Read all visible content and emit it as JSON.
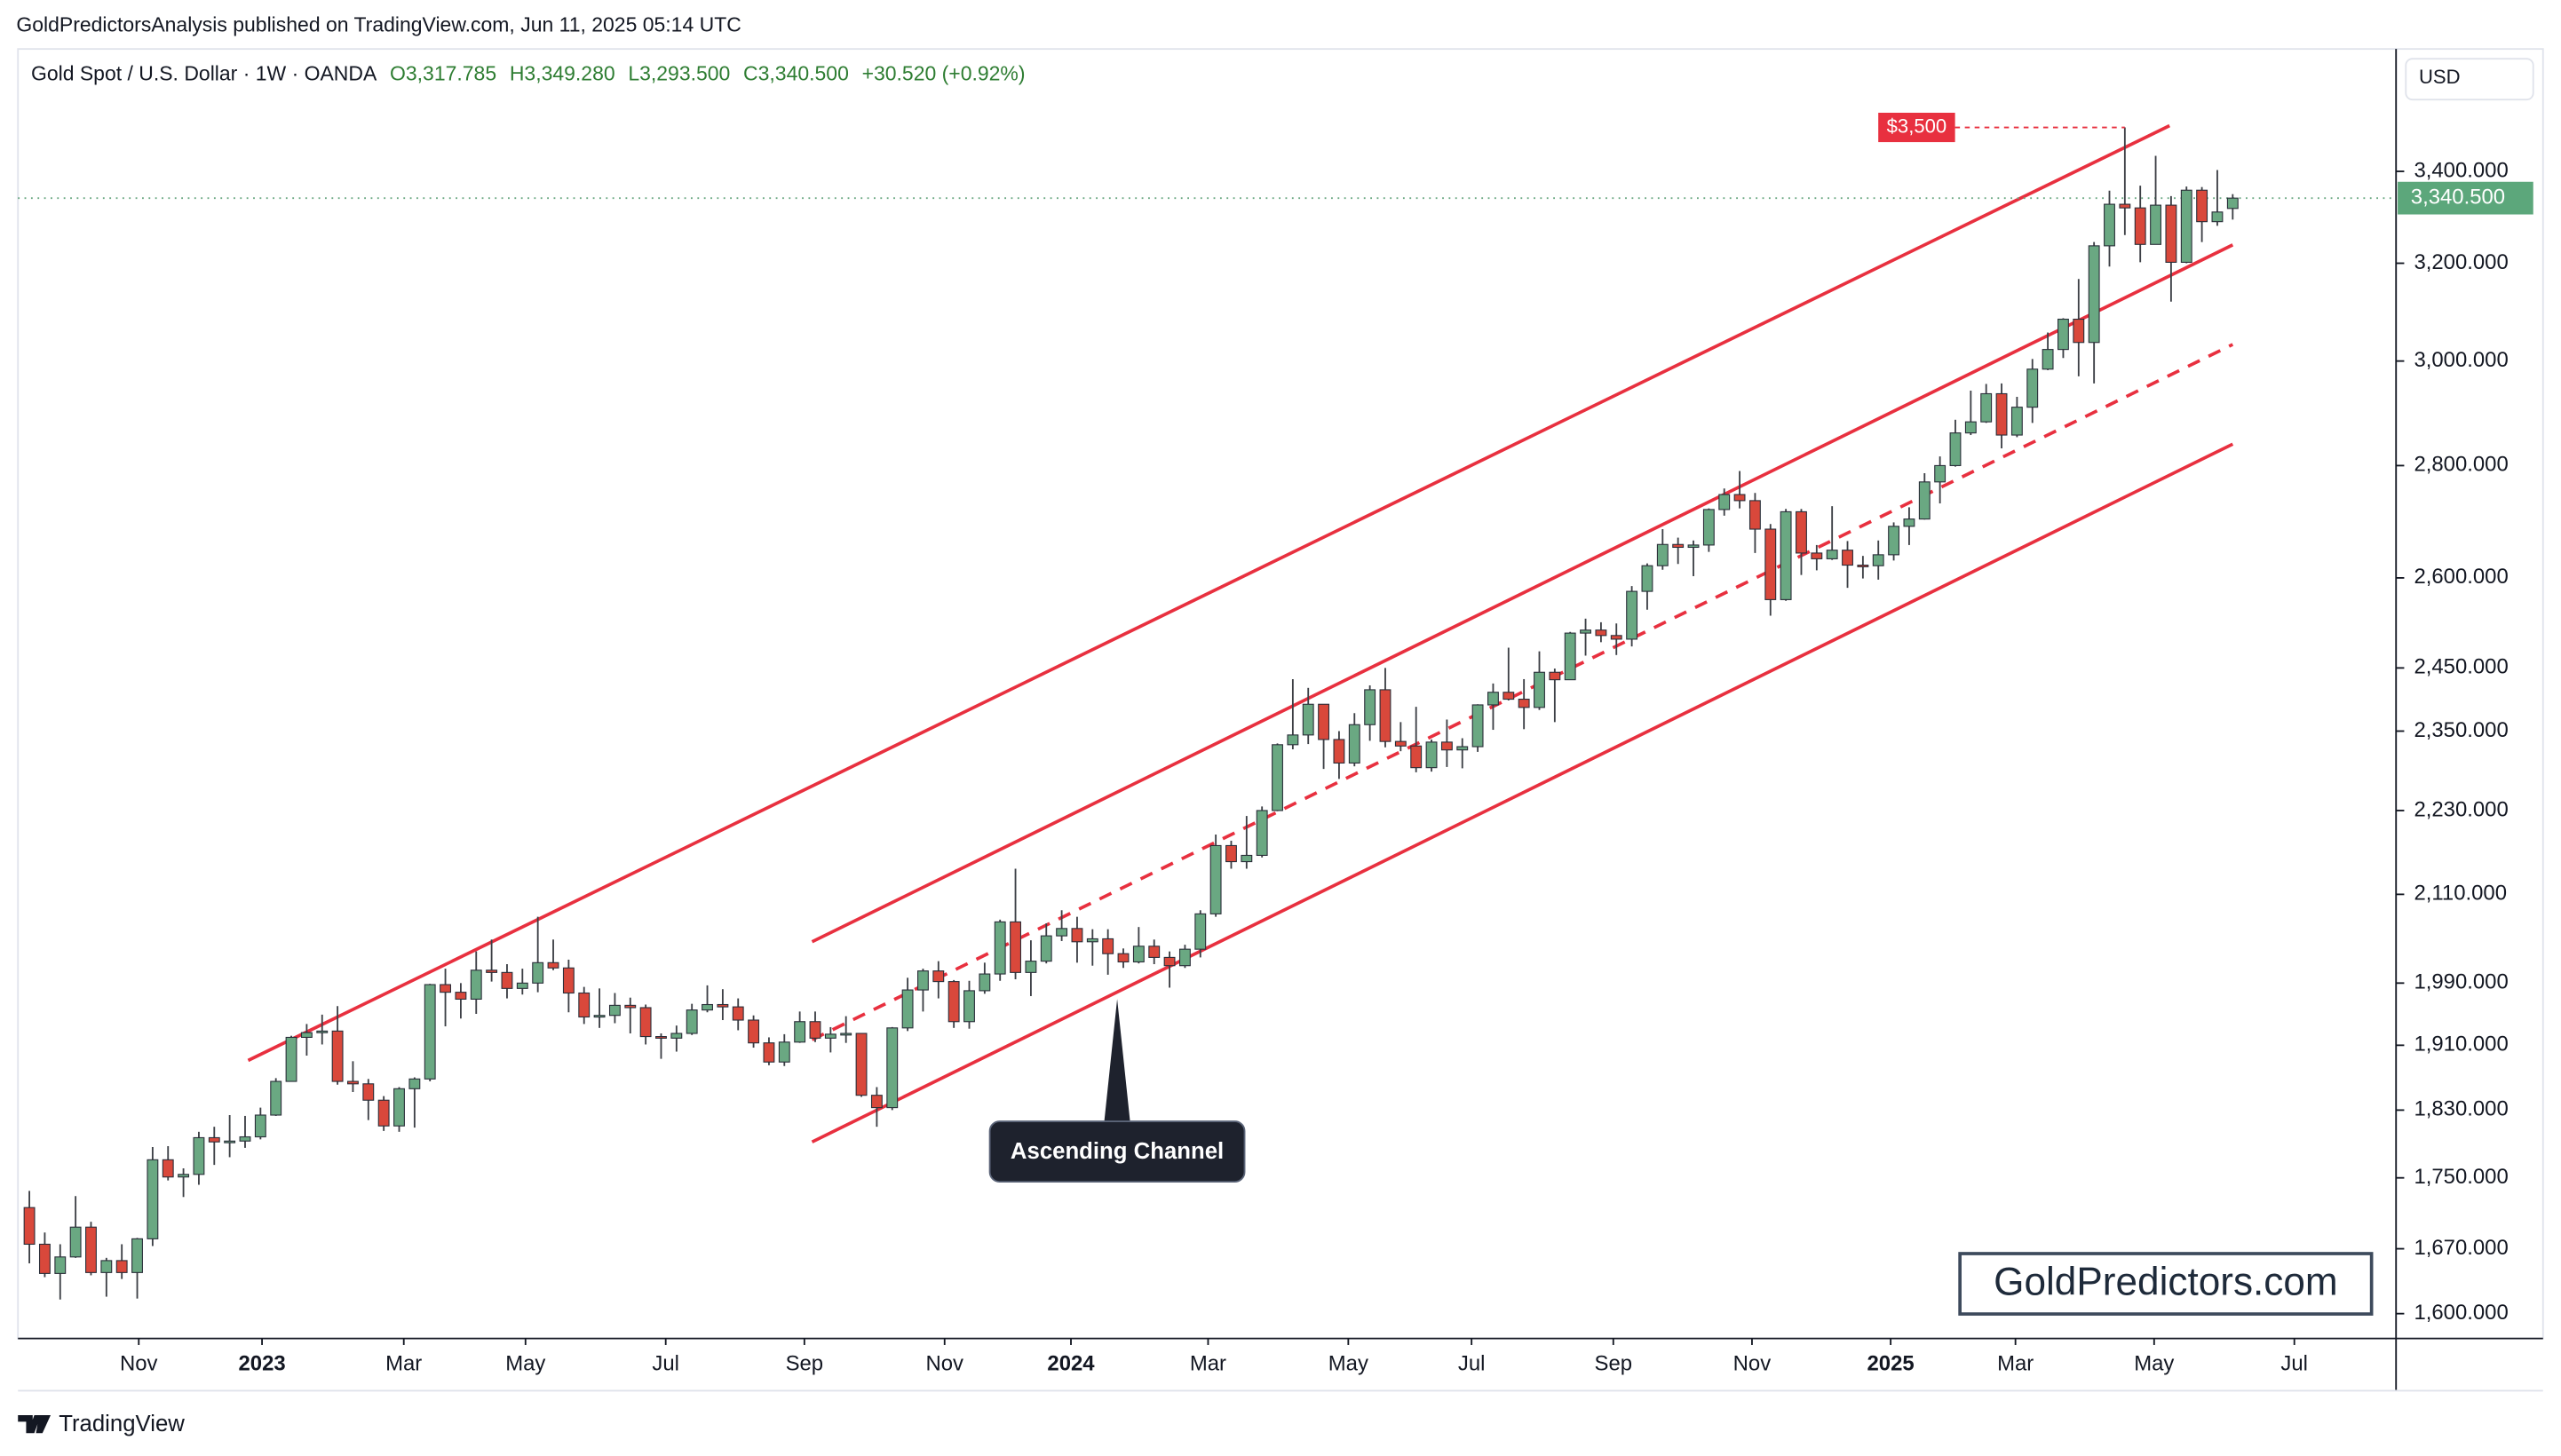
{
  "header": {
    "publisher": "GoldPredictorsAnalysis published on TradingView.com, Jun 11, 2025 05:14 UTC",
    "brand": "TradingView",
    "watermark": "GoldPredictors.com"
  },
  "chart_data": {
    "type": "candlestick",
    "symbol": "Gold Spot / U.S. Dollar · 1W · OANDA",
    "ohlc_labels": [
      "O3,317.785",
      "H3,349.280",
      "L3,293.500",
      "C3,340.500"
    ],
    "change": "+30.520 (+0.92%)",
    "currency": "USD",
    "up_color": "#6aa882",
    "down_color": "#d9483b",
    "log_scale": true,
    "ylim": [
      1574,
      3686
    ],
    "yticks": [
      {
        "value": 1600,
        "label": "1,600.000"
      },
      {
        "value": 1670,
        "label": "1,670.000"
      },
      {
        "value": 1750,
        "label": "1,750.000"
      },
      {
        "value": 1830,
        "label": "1,830.000"
      },
      {
        "value": 1910,
        "label": "1,910.000"
      },
      {
        "value": 1990,
        "label": "1,990.000"
      },
      {
        "value": 2110,
        "label": "2,110.000"
      },
      {
        "value": 2230,
        "label": "2,230.000"
      },
      {
        "value": 2350,
        "label": "2,350.000"
      },
      {
        "value": 2450,
        "label": "2,450.000"
      },
      {
        "value": 2600,
        "label": "2,600.000"
      },
      {
        "value": 2800,
        "label": "2,800.000"
      },
      {
        "value": 3000,
        "label": "3,000.000"
      },
      {
        "value": 3200,
        "label": "3,200.000"
      },
      {
        "value": 3400,
        "label": "3,400.000"
      }
    ],
    "xlim": [
      -0.74,
      153.6
    ],
    "xticks": [
      {
        "value": 7.1,
        "label": "Nov"
      },
      {
        "value": 15.1,
        "label": "2023"
      },
      {
        "value": 24.3,
        "label": "Mar"
      },
      {
        "value": 32.2,
        "label": "May"
      },
      {
        "value": 41.3,
        "label": "Jul"
      },
      {
        "value": 50.3,
        "label": "Sep"
      },
      {
        "value": 59.4,
        "label": "Nov"
      },
      {
        "value": 67.6,
        "label": "2024"
      },
      {
        "value": 76.5,
        "label": "Mar"
      },
      {
        "value": 85.6,
        "label": "May"
      },
      {
        "value": 93.6,
        "label": "Jul"
      },
      {
        "value": 102.8,
        "label": "Sep"
      },
      {
        "value": 111.8,
        "label": "Nov"
      },
      {
        "value": 120.8,
        "label": "2025"
      },
      {
        "value": 128.9,
        "label": "Mar"
      },
      {
        "value": 137.9,
        "label": "May"
      },
      {
        "value": 147,
        "label": "Jul"
      }
    ],
    "last_price": {
      "value": 3340.5,
      "label": "3,340.500"
    },
    "high_marker": {
      "value": 3500,
      "label": "$3,500"
    },
    "annotation": "Ascending Channel",
    "trendlines": [
      {
        "start": [
          14.2,
          1891
        ],
        "end": [
          138.9,
          3504
        ],
        "style": "solid"
      },
      {
        "start": [
          50.8,
          2045
        ],
        "end": [
          143,
          3239
        ],
        "style": "solid"
      },
      {
        "start": [
          50.8,
          1917
        ],
        "end": [
          143,
          3033
        ],
        "style": "dashed"
      },
      {
        "start": [
          50.8,
          1792
        ],
        "end": [
          143,
          2840
        ],
        "style": "solid"
      }
    ],
    "trendline_color": "#e8303f",
    "ohlc": [
      [
        1716,
        1735,
        1654,
        1675
      ],
      [
        1675,
        1688,
        1639,
        1643
      ],
      [
        1643,
        1675,
        1615,
        1661
      ],
      [
        1661,
        1729,
        1660,
        1694
      ],
      [
        1694,
        1700,
        1641,
        1644
      ],
      [
        1644,
        1660,
        1618,
        1657
      ],
      [
        1657,
        1675,
        1637,
        1644
      ],
      [
        1644,
        1682,
        1616,
        1681
      ],
      [
        1681,
        1786,
        1673,
        1771
      ],
      [
        1771,
        1787,
        1747,
        1751
      ],
      [
        1751,
        1761,
        1728,
        1754
      ],
      [
        1754,
        1804,
        1742,
        1797
      ],
      [
        1797,
        1810,
        1765,
        1792
      ],
      [
        1792,
        1824,
        1774,
        1793
      ],
      [
        1793,
        1823,
        1785,
        1798
      ],
      [
        1798,
        1833,
        1795,
        1824
      ],
      [
        1824,
        1869,
        1823,
        1865
      ],
      [
        1865,
        1922,
        1865,
        1920
      ],
      [
        1920,
        1937,
        1897,
        1926
      ],
      [
        1926,
        1949,
        1911,
        1928
      ],
      [
        1928,
        1960,
        1861,
        1865
      ],
      [
        1865,
        1890,
        1852,
        1862
      ],
      [
        1862,
        1868,
        1818,
        1842
      ],
      [
        1842,
        1847,
        1805,
        1811
      ],
      [
        1811,
        1858,
        1804,
        1856
      ],
      [
        1856,
        1870,
        1809,
        1868
      ],
      [
        1868,
        1989,
        1865,
        1988
      ],
      [
        1988,
        2009,
        1934,
        1978
      ],
      [
        1978,
        1990,
        1944,
        1969
      ],
      [
        1969,
        2032,
        1950,
        2007
      ],
      [
        2007,
        2048,
        1992,
        2004
      ],
      [
        2004,
        2015,
        1970,
        1983
      ],
      [
        1983,
        2009,
        1975,
        1990
      ],
      [
        1990,
        2079,
        1978,
        2017
      ],
      [
        2017,
        2048,
        2007,
        2010
      ],
      [
        2010,
        2021,
        1952,
        1977
      ],
      [
        1977,
        1985,
        1937,
        1946
      ],
      [
        1946,
        1983,
        1932,
        1948
      ],
      [
        1948,
        1977,
        1938,
        1961
      ],
      [
        1961,
        1971,
        1925,
        1958
      ],
      [
        1958,
        1962,
        1911,
        1921
      ],
      [
        1921,
        1925,
        1893,
        1919
      ],
      [
        1919,
        1935,
        1902,
        1925
      ],
      [
        1925,
        1963,
        1923,
        1955
      ],
      [
        1955,
        1987,
        1952,
        1962
      ],
      [
        1962,
        1982,
        1942,
        1959
      ],
      [
        1959,
        1970,
        1929,
        1942
      ],
      [
        1942,
        1948,
        1907,
        1913
      ],
      [
        1913,
        1920,
        1885,
        1889
      ],
      [
        1889,
        1924,
        1884,
        1914
      ],
      [
        1914,
        1953,
        1913,
        1940
      ],
      [
        1940,
        1953,
        1914,
        1919
      ],
      [
        1919,
        1933,
        1901,
        1924
      ],
      [
        1924,
        1947,
        1913,
        1925
      ],
      [
        1925,
        1925,
        1846,
        1848
      ],
      [
        1848,
        1858,
        1810,
        1833
      ],
      [
        1833,
        1933,
        1830,
        1932
      ],
      [
        1932,
        1997,
        1928,
        1981
      ],
      [
        1981,
        2009,
        1953,
        2006
      ],
      [
        2006,
        2019,
        1970,
        1992
      ],
      [
        1992,
        1994,
        1932,
        1940
      ],
      [
        1940,
        1993,
        1931,
        1980
      ],
      [
        1980,
        2017,
        1976,
        2002
      ],
      [
        2002,
        2075,
        1993,
        2072
      ],
      [
        2072,
        2146,
        1995,
        2004
      ],
      [
        2004,
        2047,
        1973,
        2019
      ],
      [
        2019,
        2070,
        2016,
        2053
      ],
      [
        2053,
        2088,
        2046,
        2063
      ],
      [
        2063,
        2079,
        2017,
        2045
      ],
      [
        2045,
        2062,
        2013,
        2049
      ],
      [
        2049,
        2062,
        2001,
        2029
      ],
      [
        2029,
        2036,
        2010,
        2018
      ],
      [
        2018,
        2065,
        2016,
        2039
      ],
      [
        2039,
        2048,
        2015,
        2024
      ],
      [
        2024,
        2032,
        1984,
        2013
      ],
      [
        2013,
        2041,
        2010,
        2035
      ],
      [
        2035,
        2088,
        2024,
        2083
      ],
      [
        2083,
        2195,
        2079,
        2179
      ],
      [
        2179,
        2186,
        2146,
        2156
      ],
      [
        2156,
        2222,
        2146,
        2165
      ],
      [
        2165,
        2236,
        2162,
        2230
      ],
      [
        2230,
        2331,
        2229,
        2329
      ],
      [
        2329,
        2432,
        2322,
        2344
      ],
      [
        2344,
        2418,
        2330,
        2392
      ],
      [
        2392,
        2392,
        2292,
        2337
      ],
      [
        2337,
        2350,
        2277,
        2301
      ],
      [
        2301,
        2378,
        2296,
        2360
      ],
      [
        2360,
        2422,
        2335,
        2415
      ],
      [
        2415,
        2450,
        2325,
        2334
      ],
      [
        2334,
        2364,
        2319,
        2327
      ],
      [
        2327,
        2388,
        2287,
        2294
      ],
      [
        2294,
        2337,
        2288,
        2333
      ],
      [
        2333,
        2368,
        2295,
        2321
      ],
      [
        2321,
        2339,
        2293,
        2326
      ],
      [
        2326,
        2392,
        2318,
        2391
      ],
      [
        2391,
        2425,
        2352,
        2411
      ],
      [
        2411,
        2483,
        2398,
        2400
      ],
      [
        2400,
        2432,
        2353,
        2387
      ],
      [
        2387,
        2477,
        2383,
        2443
      ],
      [
        2443,
        2449,
        2364,
        2431
      ],
      [
        2431,
        2509,
        2431,
        2507
      ],
      [
        2507,
        2531,
        2470,
        2512
      ],
      [
        2512,
        2525,
        2492,
        2503
      ],
      [
        2503,
        2523,
        2471,
        2497
      ],
      [
        2497,
        2586,
        2485,
        2577
      ],
      [
        2577,
        2625,
        2546,
        2621
      ],
      [
        2621,
        2685,
        2614,
        2658
      ],
      [
        2658,
        2670,
        2624,
        2653
      ],
      [
        2653,
        2665,
        2603,
        2657
      ],
      [
        2657,
        2722,
        2645,
        2720
      ],
      [
        2720,
        2758,
        2709,
        2747
      ],
      [
        2747,
        2790,
        2722,
        2736
      ],
      [
        2736,
        2750,
        2643,
        2685
      ],
      [
        2685,
        2694,
        2536,
        2563
      ],
      [
        2563,
        2721,
        2561,
        2716
      ],
      [
        2716,
        2721,
        2605,
        2643
      ],
      [
        2643,
        2657,
        2613,
        2633
      ],
      [
        2633,
        2726,
        2631,
        2648
      ],
      [
        2648,
        2664,
        2583,
        2622
      ],
      [
        2622,
        2638,
        2599,
        2621
      ],
      [
        2621,
        2665,
        2597,
        2640
      ],
      [
        2640,
        2697,
        2630,
        2690
      ],
      [
        2690,
        2724,
        2657,
        2703
      ],
      [
        2703,
        2786,
        2702,
        2770
      ],
      [
        2770,
        2817,
        2731,
        2800
      ],
      [
        2800,
        2886,
        2798,
        2861
      ],
      [
        2861,
        2942,
        2857,
        2882
      ],
      [
        2882,
        2955,
        2880,
        2936
      ],
      [
        2936,
        2956,
        2832,
        2857
      ],
      [
        2857,
        2930,
        2853,
        2910
      ],
      [
        2910,
        3004,
        2880,
        2984
      ],
      [
        2984,
        3057,
        2982,
        3023
      ],
      [
        3023,
        3086,
        3006,
        3084
      ],
      [
        3084,
        3167,
        2970,
        3037
      ],
      [
        3037,
        3245,
        2956,
        3237
      ],
      [
        3237,
        3357,
        3193,
        3327
      ],
      [
        3327,
        3500,
        3260,
        3319
      ],
      [
        3319,
        3368,
        3202,
        3240
      ],
      [
        3240,
        3435,
        3240,
        3325
      ],
      [
        3325,
        3345,
        3120,
        3202
      ],
      [
        3202,
        3366,
        3200,
        3358
      ],
      [
        3358,
        3365,
        3245,
        3289
      ],
      [
        3289,
        3403,
        3280,
        3310
      ],
      [
        3317.785,
        3349.28,
        3293.5,
        3340.5
      ]
    ]
  }
}
